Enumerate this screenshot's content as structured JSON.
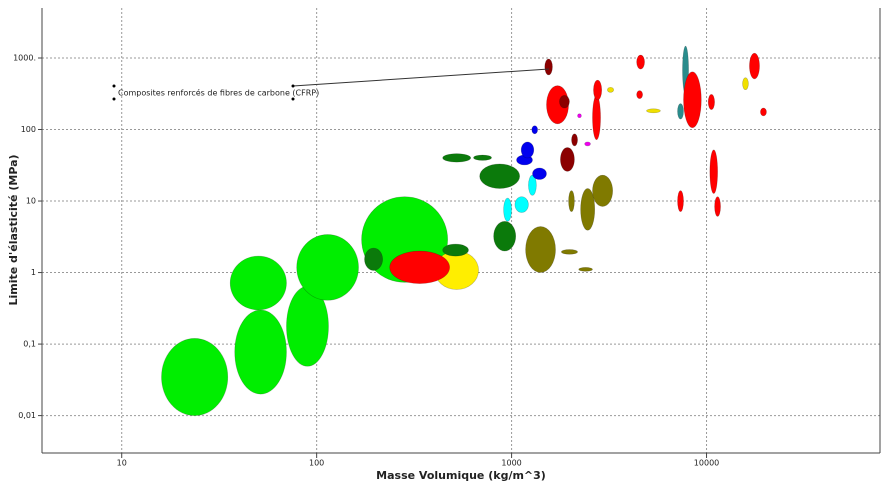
{
  "chart_data": {
    "type": "bubble",
    "xlabel": "Masse Volumique (kg/m^3)",
    "ylabel": "Limite d'élasticité (MPa)",
    "log_x": true,
    "log_y": true,
    "grid": true,
    "xlim": [
      3.9,
      77600
    ],
    "ylim": [
      0.003,
      5000
    ],
    "xticks": [
      10,
      100,
      1000,
      10000
    ],
    "yticks": [
      {
        "value": 0.01,
        "label": "0,01"
      },
      {
        "value": 0.1,
        "label": "0,1"
      },
      1,
      10,
      100,
      {
        "value": 1000,
        "label": "1000."
      }
    ],
    "annotation": "Composites renforcés de fibres de carbone (CFRP)",
    "bubbles": [
      {
        "color": "#00ee00",
        "x": [
          16,
          35
        ],
        "y": [
          0.01,
          0.12
        ]
      },
      {
        "color": "#00ee00",
        "x": [
          38,
          70
        ],
        "y": [
          0.02,
          0.3
        ]
      },
      {
        "color": "#00ee00",
        "x": [
          36,
          70
        ],
        "y": [
          0.3,
          1.7
        ]
      },
      {
        "color": "#00ee00",
        "x": [
          70,
          115
        ],
        "y": [
          0.049,
          0.64
        ]
      },
      {
        "color": "#00ee00",
        "x": [
          79,
          164
        ],
        "y": [
          0.41,
          3.4
        ]
      },
      {
        "color": "#00ee00",
        "x": [
          170,
          470
        ],
        "y": [
          0.73,
          11.5
        ]
      },
      {
        "color": "#0b7a0b",
        "x": [
          176,
          218
        ],
        "y": [
          1.07,
          2.2
        ]
      },
      {
        "color": "#ffee00",
        "x": [
          403,
          677
        ],
        "y": [
          0.58,
          2.0
        ]
      },
      {
        "color": "#ff0000",
        "x": [
          237,
          481
        ],
        "y": [
          0.7,
          2.0
        ]
      },
      {
        "color": "#0b7a0b",
        "x": [
          443,
          601
        ],
        "y": [
          1.7,
          2.5
        ]
      },
      {
        "color": "#0b7a0b",
        "x": [
          809,
          1050
        ],
        "y": [
          2.0,
          5.2
        ]
      },
      {
        "color": "#0b7a0b",
        "x": [
          686,
          1100
        ],
        "y": [
          15,
          33
        ]
      },
      {
        "color": "#0b7a0b",
        "x": [
          443,
          617
        ],
        "y": [
          35,
          46
        ]
      },
      {
        "color": "#0b7a0b",
        "x": [
          638,
          789
        ],
        "y": [
          37,
          44
        ]
      },
      {
        "color": "#807a00",
        "x": [
          1180,
          1680
        ],
        "y": [
          1.0,
          4.4
        ]
      },
      {
        "color": "#807a00",
        "x": [
          2260,
          2670
        ],
        "y": [
          3.9,
          15
        ]
      },
      {
        "color": "#807a00",
        "x": [
          2600,
          3300
        ],
        "y": [
          8.4,
          23
        ]
      },
      {
        "color": "#807a00",
        "x": [
          1960,
          2100
        ],
        "y": [
          7.1,
          14
        ]
      },
      {
        "color": "#807a00",
        "x": [
          1800,
          2180
        ],
        "y": [
          1.8,
          2.1
        ]
      },
      {
        "color": "#807a00",
        "x": [
          2210,
          2600
        ],
        "y": [
          1.04,
          1.18
        ]
      },
      {
        "color": "#00ffff",
        "x": [
          1040,
          1220
        ],
        "y": [
          6.9,
          11.5
        ]
      },
      {
        "color": "#00ffff",
        "x": [
          1220,
          1340
        ],
        "y": [
          12,
          23
        ]
      },
      {
        "color": "#00ffff",
        "x": [
          910,
          1000
        ],
        "y": [
          5.2,
          11
        ]
      },
      {
        "color": "#0000ee",
        "x": [
          1060,
          1280
        ],
        "y": [
          32,
          44
        ]
      },
      {
        "color": "#0000ee",
        "x": [
          1280,
          1510
        ],
        "y": [
          20,
          29
        ]
      },
      {
        "color": "#0000ee",
        "x": [
          1120,
          1300
        ],
        "y": [
          40,
          67
        ]
      },
      {
        "color": "#0000ee",
        "x": [
          1270,
          1360
        ],
        "y": [
          87,
          113
        ]
      },
      {
        "color": "#ff0000",
        "x": [
          1510,
          1960
        ],
        "y": [
          120,
          410
        ]
      },
      {
        "color": "#8b0000",
        "x": [
          1780,
          2100
        ],
        "y": [
          26,
          56
        ]
      },
      {
        "color": "#8b0000",
        "x": [
          1760,
          1980
        ],
        "y": [
          200,
          300
        ]
      },
      {
        "color": "#8b0000",
        "x": [
          1480,
          1620
        ],
        "y": [
          580,
          970
        ]
      },
      {
        "color": "#ff0000",
        "x": [
          2600,
          2860
        ],
        "y": [
          72,
          300
        ]
      },
      {
        "color": "#ff0000",
        "x": [
          2630,
          2900
        ],
        "y": [
          260,
          490
        ]
      },
      {
        "color": "#ff0000",
        "x": [
          4380,
          4810
        ],
        "y": [
          700,
          1100
        ]
      },
      {
        "color": "#ff0000",
        "x": [
          4380,
          4700
        ],
        "y": [
          270,
          350
        ]
      },
      {
        "color": "#2a8c8c",
        "x": [
          7530,
          8090
        ],
        "y": [
          310,
          1470
        ]
      },
      {
        "color": "#2a8c8c",
        "x": [
          7100,
          7620
        ],
        "y": [
          140,
          230
        ]
      },
      {
        "color": "#ff0000",
        "x": [
          7620,
          9400
        ],
        "y": [
          106,
          640
        ]
      },
      {
        "color": "#ff0000",
        "x": [
          10200,
          11000
        ],
        "y": [
          190,
          310
        ]
      },
      {
        "color": "#ff0000",
        "x": [
          10400,
          11400
        ],
        "y": [
          12.7,
          52
        ]
      },
      {
        "color": "#ff0000",
        "x": [
          7100,
          7620
        ],
        "y": [
          7.1,
          14
        ]
      },
      {
        "color": "#ff0000",
        "x": [
          11000,
          11800
        ],
        "y": [
          6.1,
          11.5
        ]
      },
      {
        "color": "#ff0000",
        "x": [
          16600,
          18700
        ],
        "y": [
          510,
          1170
        ]
      },
      {
        "color": "#f0e000",
        "x": [
          15300,
          16400
        ],
        "y": [
          360,
          530
        ]
      },
      {
        "color": "#ff0000",
        "x": [
          18900,
          20300
        ],
        "y": [
          155,
          200
        ]
      },
      {
        "color": "#f0e000",
        "x": [
          4920,
          5800
        ],
        "y": [
          171,
          195
        ]
      },
      {
        "color": "#f0e000",
        "x": [
          3100,
          3340
        ],
        "y": [
          330,
          390
        ]
      },
      {
        "color": "#ee00ee",
        "x": [
          2370,
          2540
        ],
        "y": [
          59,
          67
        ]
      },
      {
        "color": "#ee00ee",
        "x": [
          2180,
          2280
        ],
        "y": [
          146,
          166
        ]
      },
      {
        "color": "#8b0000",
        "x": [
          2030,
          2180
        ],
        "y": [
          59,
          87
        ]
      }
    ]
  }
}
